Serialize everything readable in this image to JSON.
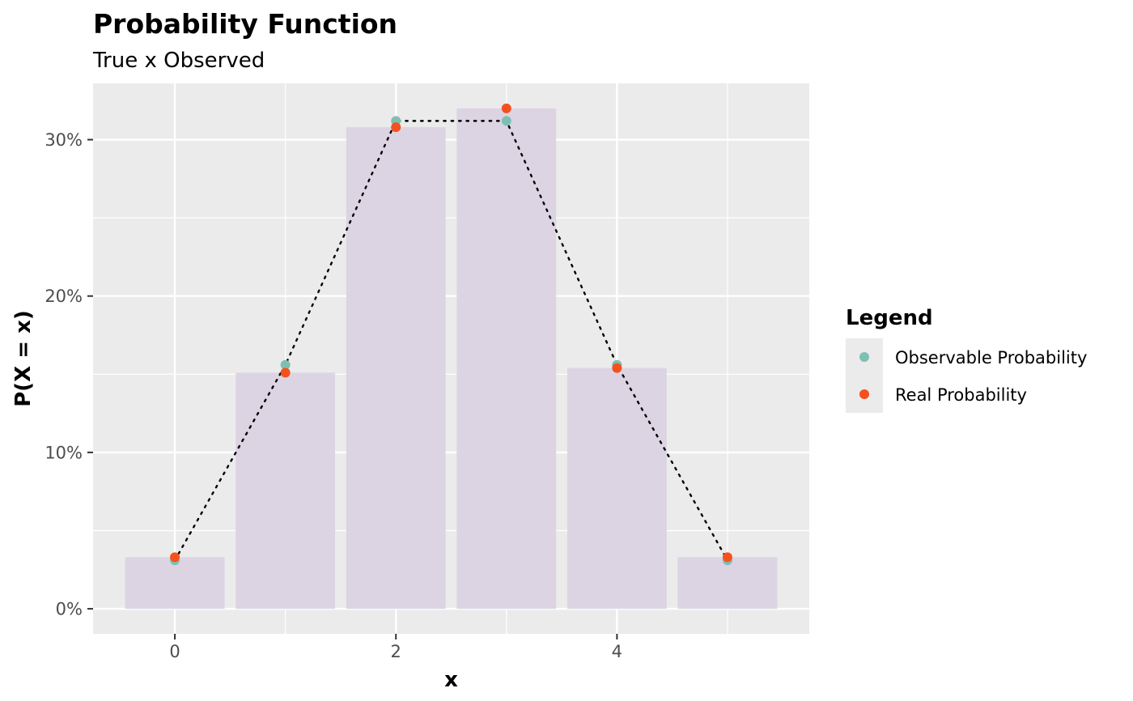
{
  "chart_data": {
    "type": "bar",
    "title": "Probability Function",
    "subtitle": "True x Observed",
    "xlabel": "x",
    "ylabel": "P(X = x)",
    "x": [
      0,
      1,
      2,
      3,
      4,
      5
    ],
    "x_ticks": [
      "0",
      "2",
      "4"
    ],
    "x_tick_values": [
      0,
      2,
      4
    ],
    "y_ticks": [
      "0%",
      "10%",
      "20%",
      "30%"
    ],
    "y_tick_values": [
      0,
      0.1,
      0.2,
      0.3
    ],
    "xlim": [
      -0.74,
      5.74
    ],
    "ylim": [
      -0.016,
      0.336
    ],
    "grid": true,
    "bars": {
      "values": [
        0.033,
        0.151,
        0.308,
        0.32,
        0.154,
        0.033
      ],
      "color": "#dcd4e2"
    },
    "series": [
      {
        "name": "Observable Probability",
        "values": [
          0.031,
          0.156,
          0.312,
          0.312,
          0.156,
          0.031
        ],
        "color": "#7fbfb3",
        "line": "dotted"
      },
      {
        "name": "Real Probability",
        "values": [
          0.033,
          0.151,
          0.308,
          0.32,
          0.154,
          0.033
        ],
        "color": "#f4511e"
      }
    ],
    "legend": {
      "title": "Legend",
      "position": "right",
      "entries": [
        "Observable Probability",
        "Real Probability"
      ]
    },
    "colors": {
      "panel": "#ebebeb",
      "grid": "#ffffff",
      "line": "#000000"
    }
  }
}
